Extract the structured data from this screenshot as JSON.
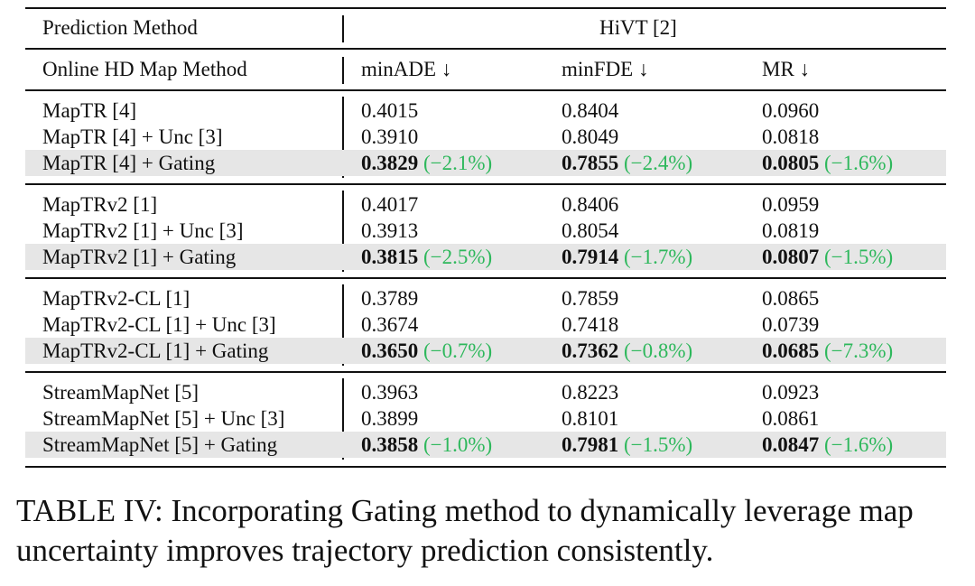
{
  "header": {
    "col0_top": "Prediction Method",
    "group_label": "HiVT [2]",
    "col0_bottom": "Online HD Map Method",
    "metric1": "minADE ↓",
    "metric2": "minFDE ↓",
    "metric3": "MR ↓"
  },
  "groups": [
    {
      "rows": [
        {
          "method": "MapTR [4]",
          "ade": "0.4015",
          "fde": "0.8404",
          "mr": "0.0960"
        },
        {
          "method": "MapTR [4] + Unc [3]",
          "ade": "0.3910",
          "fde": "0.8049",
          "mr": "0.0818"
        },
        {
          "method": "MapTR [4] + Gating",
          "ade": "0.3829",
          "ade_pct": "(−2.1%)",
          "fde": "0.7855",
          "fde_pct": "(−2.4%)",
          "mr": "0.0805",
          "mr_pct": "(−1.6%)"
        }
      ]
    },
    {
      "rows": [
        {
          "method": "MapTRv2 [1]",
          "ade": "0.4017",
          "fde": "0.8406",
          "mr": "0.0959"
        },
        {
          "method": "MapTRv2 [1] + Unc [3]",
          "ade": "0.3913",
          "fde": "0.8054",
          "mr": "0.0819"
        },
        {
          "method": "MapTRv2 [1] + Gating",
          "ade": "0.3815",
          "ade_pct": "(−2.5%)",
          "fde": "0.7914",
          "fde_pct": "(−1.7%)",
          "mr": "0.0807",
          "mr_pct": "(−1.5%)"
        }
      ]
    },
    {
      "rows": [
        {
          "method": "MapTRv2-CL [1]",
          "ade": "0.3789",
          "fde": "0.7859",
          "mr": "0.0865"
        },
        {
          "method": "MapTRv2-CL [1] + Unc [3]",
          "ade": "0.3674",
          "fde": "0.7418",
          "mr": "0.0739"
        },
        {
          "method": "MapTRv2-CL [1] + Gating",
          "ade": "0.3650",
          "ade_pct": "(−0.7%)",
          "fde": "0.7362",
          "fde_pct": "(−0.8%)",
          "mr": "0.0685",
          "mr_pct": "(−7.3%)"
        }
      ]
    },
    {
      "rows": [
        {
          "method": "StreamMapNet [5]",
          "ade": "0.3963",
          "fde": "0.8223",
          "mr": "0.0923"
        },
        {
          "method": "StreamMapNet [5] + Unc [3]",
          "ade": "0.3899",
          "fde": "0.8101",
          "mr": "0.0861"
        },
        {
          "method": "StreamMapNet [5] + Gating",
          "ade": "0.3858",
          "ade_pct": "(−1.0%)",
          "fde": "0.7981",
          "fde_pct": "(−1.5%)",
          "mr": "0.0847",
          "mr_pct": "(−1.6%)"
        }
      ]
    }
  ],
  "caption": {
    "label": "TABLE IV:",
    "text": " Incorporating Gating method to dynamically leverage map uncertainty improves trajectory prediction consistently."
  },
  "colors": {
    "highlight_row": "#e6e6e6",
    "improvement_text": "#2eb85c"
  }
}
